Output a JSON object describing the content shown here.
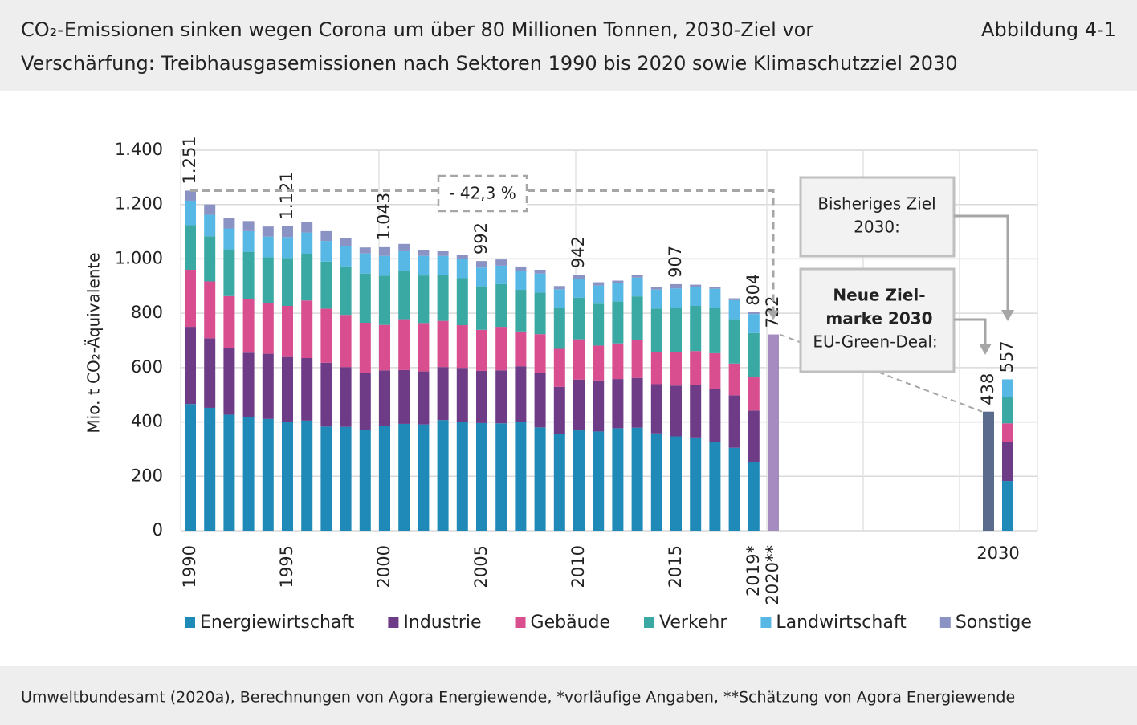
{
  "header": {
    "title_line1": "CO₂-Emissionen sinken wegen Corona um über 80 Millionen Tonnen, 2030-Ziel vor",
    "title_line2": "Verschärfung: Treibhausgasemissionen nach Sektoren 1990 bis 2020 sowie Klimaschutzziel 2030",
    "figure_label": "Abbildung 4-1"
  },
  "chart_data": {
    "type": "bar",
    "stacked": true,
    "y_label": "Mio. t CO₂-Äquivalente",
    "ylim": [
      0,
      1400
    ],
    "yticks": [
      0,
      200,
      400,
      600,
      800,
      {
        "value": 1000,
        "label": "1.000"
      },
      {
        "value": 1200,
        "label": "1.200"
      },
      {
        "value": 1400,
        "label": "1.400"
      }
    ],
    "grid": true,
    "categories": [
      "1990",
      null,
      null,
      null,
      null,
      "1995",
      null,
      null,
      null,
      null,
      "2000",
      null,
      null,
      null,
      null,
      "2005",
      null,
      null,
      null,
      null,
      "2010",
      null,
      null,
      null,
      null,
      "2015",
      null,
      null,
      null,
      "2019*",
      "2020**"
    ],
    "series": [
      {
        "name": "Energiewirtschaft",
        "color": "#1f8ab8",
        "values": [
          466,
          452,
          427,
          418,
          411,
          399,
          405,
          383,
          382,
          372,
          385,
          393,
          391,
          407,
          401,
          396,
          395,
          400,
          380,
          357,
          369,
          365,
          377,
          379,
          358,
          347,
          343,
          325,
          305,
          254,
          null
        ]
      },
      {
        "name": "Industrie",
        "color": "#6e3b87",
        "values": [
          284,
          256,
          245,
          237,
          240,
          240,
          230,
          235,
          220,
          208,
          205,
          198,
          195,
          195,
          198,
          192,
          195,
          205,
          200,
          172,
          187,
          188,
          181,
          183,
          181,
          187,
          192,
          197,
          193,
          188,
          null
        ]
      },
      {
        "name": "Gebäude",
        "color": "#d94e8f",
        "values": [
          210,
          209,
          191,
          198,
          185,
          188,
          212,
          199,
          192,
          185,
          167,
          187,
          178,
          170,
          157,
          151,
          160,
          128,
          143,
          140,
          148,
          128,
          131,
          141,
          117,
          124,
          126,
          131,
          117,
          122,
          null
        ]
      },
      {
        "name": "Verkehr",
        "color": "#3aa9a4",
        "values": [
          164,
          166,
          172,
          173,
          170,
          176,
          172,
          173,
          178,
          181,
          181,
          177,
          175,
          168,
          173,
          160,
          157,
          153,
          153,
          150,
          153,
          154,
          154,
          159,
          161,
          162,
          166,
          167,
          163,
          163,
          null
        ]
      },
      {
        "name": "Landwirtschaft",
        "color": "#57b8e6",
        "values": [
          90,
          79,
          77,
          76,
          76,
          77,
          78,
          76,
          76,
          74,
          73,
          73,
          72,
          71,
          71,
          69,
          68,
          68,
          70,
          69,
          68,
          67,
          67,
          69,
          70,
          71,
          70,
          70,
          70,
          70,
          null
        ]
      },
      {
        "name": "Sonstige",
        "color": "#8b93c5",
        "values": [
          37,
          38,
          37,
          37,
          37,
          41,
          38,
          36,
          30,
          22,
          32,
          27,
          20,
          17,
          14,
          24,
          23,
          18,
          14,
          12,
          17,
          12,
          10,
          10,
          9,
          16,
          8,
          7,
          7,
          7,
          null
        ]
      }
    ],
    "totals": {
      "values": [
        1251,
        null,
        null,
        null,
        null,
        1121,
        null,
        null,
        null,
        null,
        1043,
        null,
        null,
        null,
        null,
        992,
        null,
        null,
        null,
        null,
        942,
        null,
        null,
        null,
        null,
        907,
        null,
        null,
        null,
        804,
        722
      ],
      "value_labels": [
        "1.251",
        null,
        null,
        null,
        null,
        "1.121",
        null,
        null,
        null,
        null,
        "1.043",
        null,
        null,
        null,
        null,
        "992",
        null,
        null,
        null,
        null,
        "942",
        null,
        null,
        null,
        null,
        "907",
        null,
        null,
        null,
        "804",
        "722"
      ]
    },
    "estimate_2020": {
      "value": 722,
      "color": "#a58bc0"
    },
    "target_2030": {
      "label": "2030",
      "new_target": {
        "value": 438,
        "color": "#5b6b8e"
      },
      "previous_target": {
        "values": [
          183,
          142,
          70,
          98,
          64,
          0
        ],
        "total": 557
      }
    },
    "annotations": {
      "reduction": "- 42,3 %",
      "previous_line1": "Bisheriges Ziel",
      "previous_line2": "2030:",
      "new_line1": "Neue Ziel-",
      "new_line2": "marke 2030",
      "new_line3": "EU-Green-Deal:"
    }
  },
  "footer": {
    "source": "Umweltbundesamt (2020a), Berechnungen von Agora Energiewende, *vorläufige Angaben, **Schätzung von Agora Energiewende"
  }
}
